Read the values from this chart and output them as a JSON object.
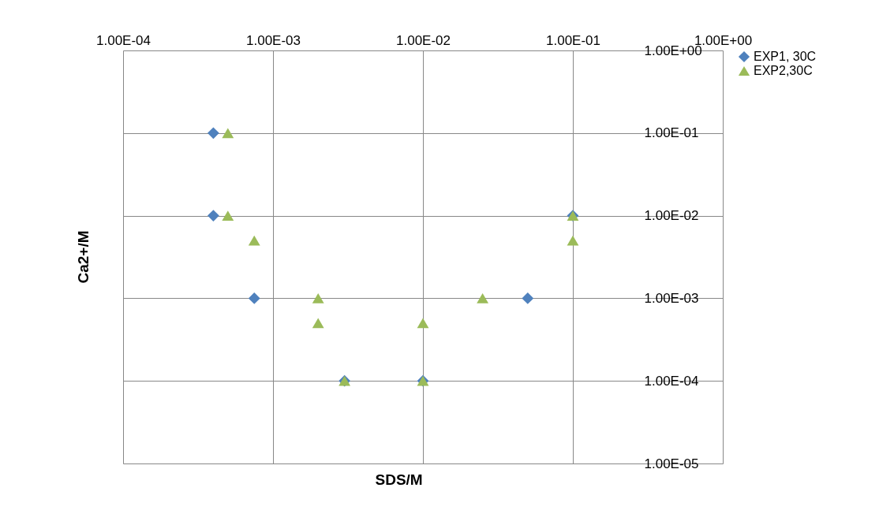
{
  "chart_data": {
    "type": "scatter",
    "xlabel": "SDS/M",
    "ylabel": "Ca2+/M",
    "xlim": [
      0.0001,
      1
    ],
    "ylim": [
      1e-05,
      1
    ],
    "log": "xy",
    "grid": true,
    "legend": "right",
    "xticks": [
      {
        "value": 0.0001,
        "label": "1.00E-04"
      },
      {
        "value": 0.001,
        "label": "1.00E-03"
      },
      {
        "value": 0.01,
        "label": "1.00E-02"
      },
      {
        "value": 0.1,
        "label": "1.00E-01"
      },
      {
        "value": 1,
        "label": "1.00E+00"
      }
    ],
    "yticks": [
      {
        "value": 1e-05,
        "label": "1.00E-05"
      },
      {
        "value": 0.0001,
        "label": "1.00E-04"
      },
      {
        "value": 0.001,
        "label": "1.00E-03"
      },
      {
        "value": 0.01,
        "label": "1.00E-02"
      },
      {
        "value": 0.1,
        "label": "1.00E-01"
      },
      {
        "value": 1,
        "label": "1.00E+00"
      }
    ],
    "series": [
      {
        "name": "EXP1, 30C",
        "color": "#4f81bd",
        "marker": "diamond",
        "x": [
          0.0004,
          0.0004,
          0.00075,
          0.003,
          0.01,
          0.05,
          0.1
        ],
        "values": [
          0.1,
          0.01,
          0.001,
          0.0001,
          0.0001,
          0.001,
          0.01
        ]
      },
      {
        "name": "EXP2,30C",
        "color": "#9bbb59",
        "marker": "triangle",
        "x": [
          0.0005,
          0.0005,
          0.00075,
          0.002,
          0.002,
          0.003,
          0.01,
          0.01,
          0.025,
          0.1,
          0.1
        ],
        "values": [
          0.1,
          0.01,
          0.005,
          0.001,
          0.0005,
          0.0001,
          0.0005,
          0.0001,
          0.001,
          0.01,
          0.005
        ]
      }
    ]
  }
}
